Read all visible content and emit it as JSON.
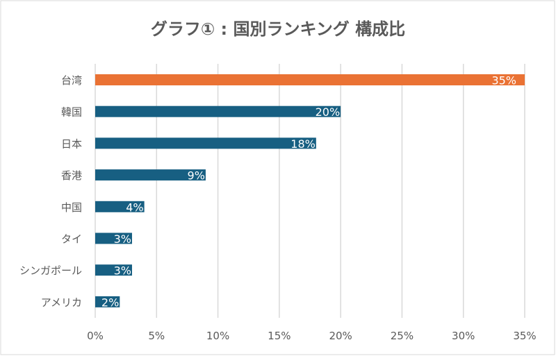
{
  "chart_data": {
    "type": "bar",
    "orientation": "horizontal",
    "title": "グラフ① : 国別ランキング 構成比",
    "categories": [
      "台湾",
      "韓国",
      "日本",
      "香港",
      "中国",
      "タイ",
      "シンガポール",
      "アメリカ"
    ],
    "values": [
      35,
      20,
      18,
      9,
      4,
      3,
      3,
      2
    ],
    "data_labels": [
      "35%",
      "20%",
      "18%",
      "9%",
      "4%",
      "3%",
      "3%",
      "2%"
    ],
    "highlight_index": 0,
    "xlim": [
      0,
      35
    ],
    "xticks": [
      0,
      5,
      10,
      15,
      20,
      25,
      30,
      35
    ],
    "xtick_labels": [
      "0%",
      "5%",
      "10%",
      "15%",
      "20%",
      "25%",
      "30%",
      "35%"
    ],
    "xlabel": "",
    "ylabel": "",
    "grid": "vertical",
    "legend": "none",
    "colors": {
      "highlight": "#EA7234",
      "bar": "#175F82",
      "grid": "#D9D9D9",
      "text": "#595959",
      "label": "#FFFFFF"
    }
  }
}
